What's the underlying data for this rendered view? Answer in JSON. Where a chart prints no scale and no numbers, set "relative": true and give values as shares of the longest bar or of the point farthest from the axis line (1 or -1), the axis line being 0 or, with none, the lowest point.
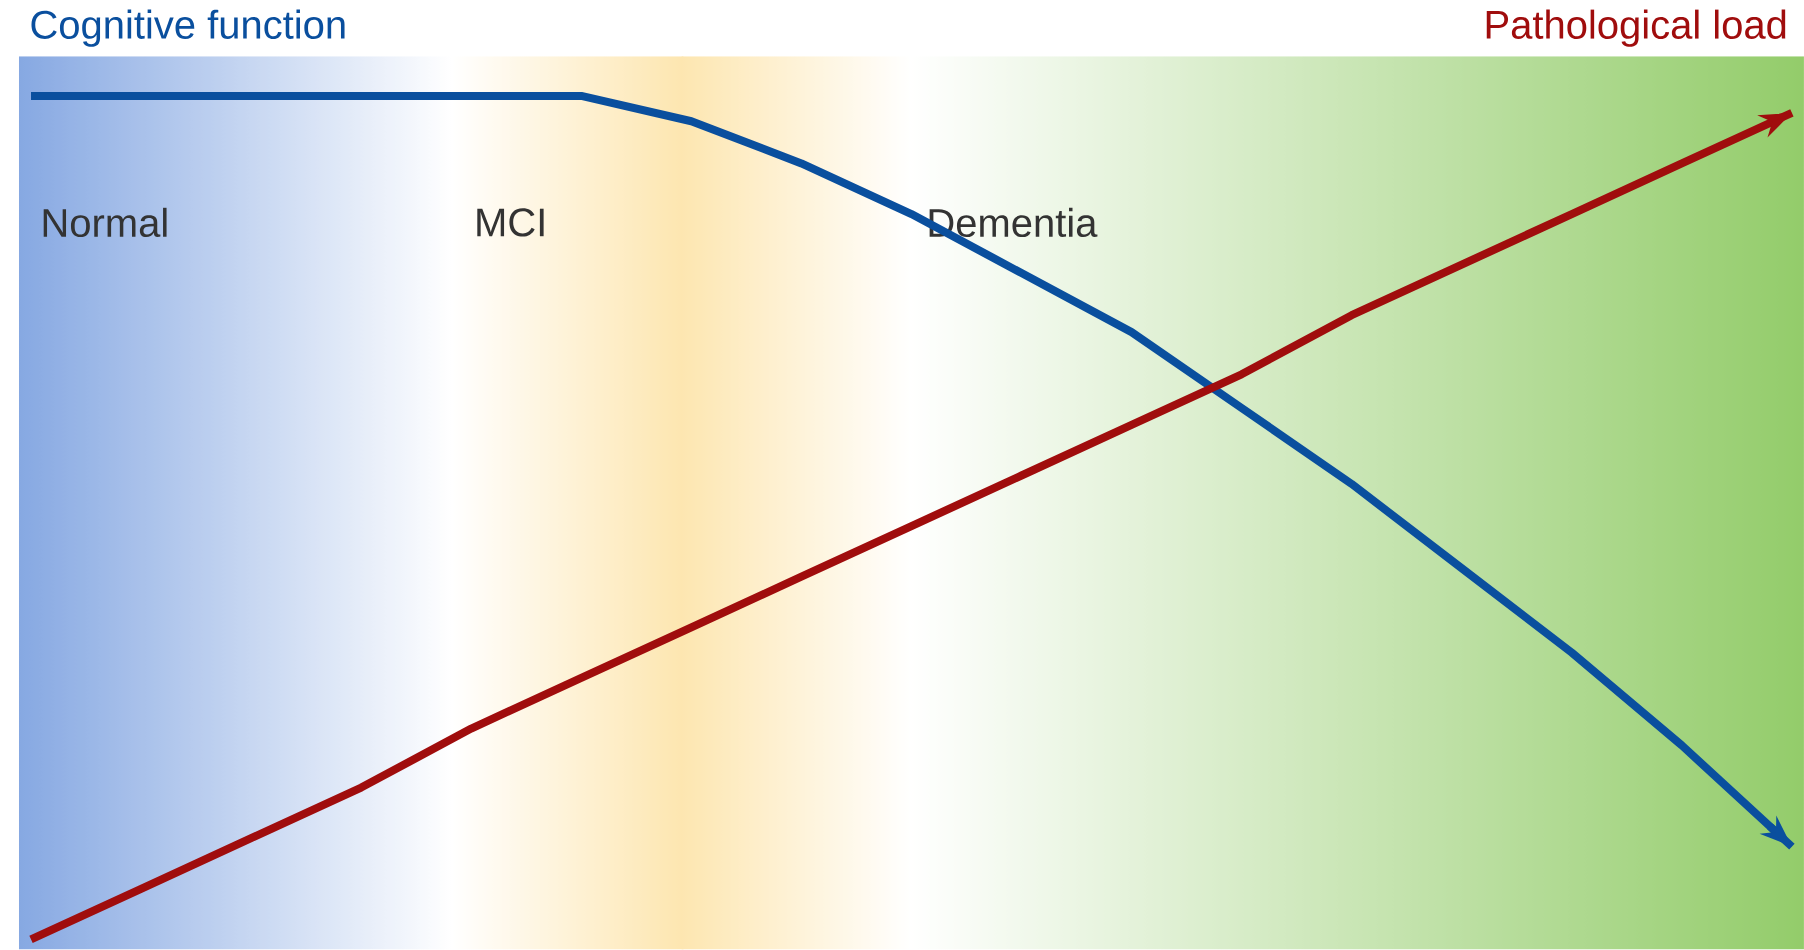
{
  "chart_data": {
    "type": "line",
    "relative": true,
    "marker": "none",
    "line_style": "solid",
    "categories": [
      null,
      null,
      null,
      null,
      null,
      null,
      null,
      null,
      null,
      null,
      null,
      null,
      null,
      null,
      null,
      null,
      null
    ],
    "series": [
      {
        "name": "Cognitive function",
        "color": "#0a4f9e",
        "values": [
          1.0,
          1.0,
          1.0,
          1.0,
          1.0,
          1.0,
          0.97,
          0.92,
          0.86,
          0.79,
          0.72,
          0.63,
          0.54,
          0.44,
          0.34,
          0.23,
          0.11
        ]
      },
      {
        "name": "Pathological load",
        "color": "#a00d0d",
        "values": [
          0,
          0.06,
          0.12,
          0.18,
          0.25,
          0.31,
          0.37,
          0.43,
          0.49,
          0.55,
          0.61,
          0.67,
          0.74,
          0.8,
          0.86,
          0.92,
          0.98
        ]
      }
    ],
    "annotations": [
      "Normal",
      "MCI",
      "Dementia"
    ]
  }
}
